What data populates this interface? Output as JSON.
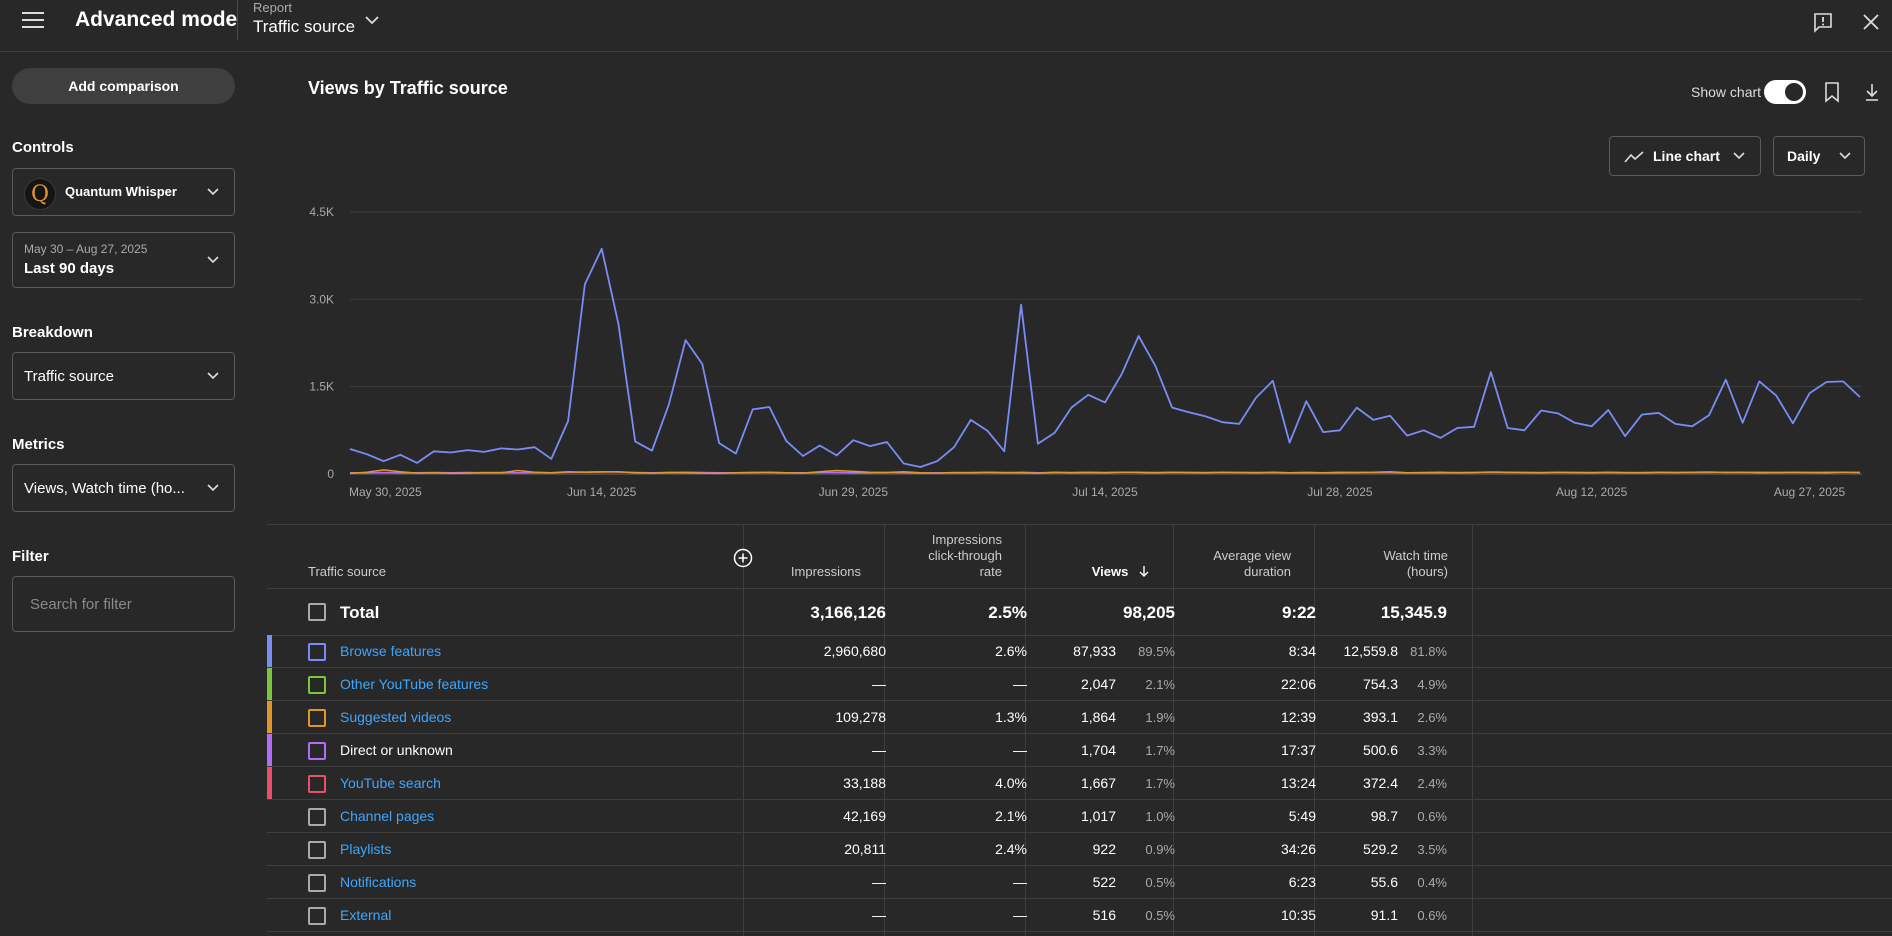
{
  "header": {
    "app_title": "Advanced mode",
    "report_label": "Report",
    "report_value": "Traffic source"
  },
  "sidebar": {
    "add_comparison": "Add comparison",
    "controls_title": "Controls",
    "channel": {
      "avatar_letter": "Q",
      "name": "Quantum Whisper"
    },
    "date_range": {
      "dates": "May 30 – Aug 27, 2025",
      "label": "Last 90 days"
    },
    "breakdown_title": "Breakdown",
    "breakdown_value": "Traffic source",
    "metrics_title": "Metrics",
    "metrics_value": "Views, Watch time (ho...",
    "filter_title": "Filter",
    "filter_placeholder": "Search for filter"
  },
  "main": {
    "chart_title": "Views by Traffic source",
    "show_chart_label": "Show chart",
    "chart_type_label": "Line chart",
    "interval_label": "Daily"
  },
  "chart_data": {
    "type": "line",
    "title": "Views by Traffic source",
    "ylim": [
      0,
      4500
    ],
    "yticks": [
      "0",
      "1.5K",
      "3.0K",
      "4.5K"
    ],
    "xticks": [
      "May 30, 2025",
      "Jun 14, 2025",
      "Jun 29, 2025",
      "Jul 14, 2025",
      "Jul 28, 2025",
      "Aug 12, 2025",
      "Aug 27, 2025"
    ],
    "grid": true,
    "x_start": "2025-05-30",
    "series": [
      {
        "color": "#7b8cf5",
        "values": [
          430,
          340,
          220,
          330,
          190,
          390,
          370,
          410,
          380,
          440,
          420,
          460,
          260,
          910,
          3260,
          3870,
          2580,
          560,
          400,
          1190,
          2300,
          1890,
          530,
          350,
          1110,
          1150,
          570,
          310,
          490,
          320,
          580,
          480,
          550,
          180,
          120,
          220,
          460,
          930,
          740,
          390,
          2910,
          520,
          710,
          1140,
          1360,
          1230,
          1720,
          2370,
          1860,
          1140,
          1060,
          990,
          890,
          860,
          1310,
          1600,
          540,
          1250,
          720,
          750,
          1140,
          930,
          1000,
          660,
          750,
          620,
          790,
          810,
          1750,
          790,
          750,
          1090,
          1040,
          880,
          820,
          1100,
          650,
          1020,
          1050,
          860,
          820,
          1010,
          1620,
          880,
          1590,
          1350,
          870,
          1390,
          1580,
          1590,
          1320
        ]
      },
      {
        "color": "#e0962a",
        "values": [
          10,
          30,
          70,
          40,
          15,
          20,
          10,
          15,
          25,
          20,
          60,
          30,
          20,
          40,
          30,
          35,
          40,
          20,
          15,
          25,
          20,
          15,
          10,
          20,
          25,
          30,
          20,
          15,
          40,
          60,
          45,
          30,
          25,
          40,
          20,
          15,
          25,
          20,
          30,
          25,
          20,
          15,
          30,
          20,
          25,
          20,
          30,
          25,
          20,
          30,
          25,
          20,
          30,
          25,
          20,
          30,
          20,
          25,
          20,
          30,
          25,
          30,
          40,
          20,
          25,
          30,
          20,
          25,
          35,
          30,
          25,
          20,
          30,
          25,
          20,
          30,
          25,
          20,
          30,
          25,
          30,
          35,
          25,
          30,
          20,
          25,
          30,
          25,
          20,
          30,
          25
        ]
      },
      {
        "color": "#b36cf5",
        "values": [
          20,
          20,
          25,
          20,
          20,
          25,
          20,
          25,
          20,
          25,
          20,
          25,
          20,
          30,
          35,
          40,
          35,
          25,
          20,
          25,
          30,
          25,
          20,
          20,
          25,
          25,
          20,
          20,
          25,
          25,
          20,
          20,
          25,
          20,
          15,
          20,
          20,
          25,
          25,
          20,
          30,
          20,
          25,
          25,
          30,
          25,
          30,
          30,
          25,
          25,
          25,
          25,
          25,
          25,
          25,
          25,
          20,
          25,
          20,
          20,
          25,
          25,
          25,
          20,
          20,
          20,
          25,
          25,
          30,
          25,
          25,
          25,
          25,
          25,
          25,
          25,
          20,
          25,
          25,
          25,
          25,
          25,
          30,
          25,
          30,
          25,
          25,
          25,
          30,
          30,
          25
        ]
      }
    ]
  },
  "table": {
    "headers": {
      "source": "Traffic source",
      "impressions": "Impressions",
      "ctr_1": "Impressions",
      "ctr_2": "click-through",
      "ctr_3": "rate",
      "views": "Views",
      "avd_1": "Average view",
      "avd_2": "duration",
      "watch_1": "Watch time",
      "watch_2": "(hours)"
    },
    "total": {
      "name": "Total",
      "impressions": "3,166,126",
      "ctr": "2.5%",
      "views": "98,205",
      "avd": "9:22",
      "watch": "15,345.9"
    },
    "rows": [
      {
        "name": "Browse features",
        "link": true,
        "color": "#7b8cf5",
        "impressions": "2,960,680",
        "ctr": "2.6%",
        "views": "87,933",
        "views_pct": "89.5%",
        "avd": "8:34",
        "watch": "12,559.8",
        "watch_pct": "81.8%"
      },
      {
        "name": "Other YouTube features",
        "link": true,
        "color": "#7cc63f",
        "impressions": "—",
        "ctr": "—",
        "views": "2,047",
        "views_pct": "2.1%",
        "avd": "22:06",
        "watch": "754.3",
        "watch_pct": "4.9%"
      },
      {
        "name": "Suggested videos",
        "link": true,
        "color": "#e0962a",
        "impressions": "109,278",
        "ctr": "1.3%",
        "views": "1,864",
        "views_pct": "1.9%",
        "avd": "12:39",
        "watch": "393.1",
        "watch_pct": "2.6%"
      },
      {
        "name": "Direct or unknown",
        "link": false,
        "color": "#b36cf5",
        "impressions": "—",
        "ctr": "—",
        "views": "1,704",
        "views_pct": "1.7%",
        "avd": "17:37",
        "watch": "500.6",
        "watch_pct": "3.3%"
      },
      {
        "name": "YouTube search",
        "link": true,
        "color": "#e8506a",
        "impressions": "33,188",
        "ctr": "4.0%",
        "views": "1,667",
        "views_pct": "1.7%",
        "avd": "13:24",
        "watch": "372.4",
        "watch_pct": "2.4%"
      },
      {
        "name": "Channel pages",
        "link": true,
        "color": "",
        "impressions": "42,169",
        "ctr": "2.1%",
        "views": "1,017",
        "views_pct": "1.0%",
        "avd": "5:49",
        "watch": "98.7",
        "watch_pct": "0.6%"
      },
      {
        "name": "Playlists",
        "link": true,
        "color": "",
        "impressions": "20,811",
        "ctr": "2.4%",
        "views": "922",
        "views_pct": "0.9%",
        "avd": "34:26",
        "watch": "529.2",
        "watch_pct": "3.5%"
      },
      {
        "name": "Notifications",
        "link": true,
        "color": "",
        "impressions": "—",
        "ctr": "—",
        "views": "522",
        "views_pct": "0.5%",
        "avd": "6:23",
        "watch": "55.6",
        "watch_pct": "0.4%"
      },
      {
        "name": "External",
        "link": true,
        "color": "",
        "impressions": "—",
        "ctr": "—",
        "views": "516",
        "views_pct": "0.5%",
        "avd": "10:35",
        "watch": "91.1",
        "watch_pct": "0.6%"
      }
    ]
  }
}
